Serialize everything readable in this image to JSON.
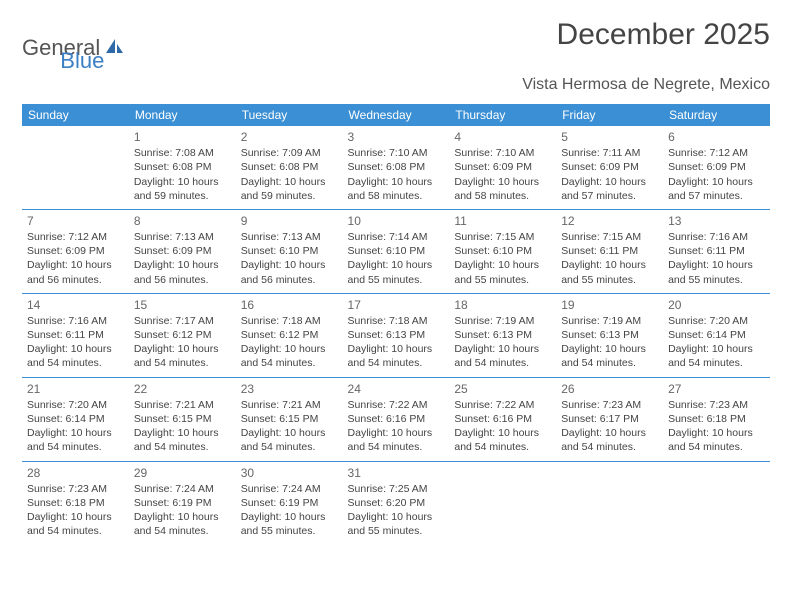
{
  "brand": {
    "part1": "General",
    "part2": "Blue"
  },
  "title": "December 2025",
  "subtitle": "Vista Hermosa de Negrete, Mexico",
  "colors": {
    "accent": "#3b8fd4",
    "text": "#444444",
    "bg": "#ffffff"
  },
  "weekdays": [
    "Sunday",
    "Monday",
    "Tuesday",
    "Wednesday",
    "Thursday",
    "Friday",
    "Saturday"
  ],
  "weeks": [
    [
      null,
      {
        "n": "1",
        "sr": "Sunrise: 7:08 AM",
        "ss": "Sunset: 6:08 PM",
        "d1": "Daylight: 10 hours",
        "d2": "and 59 minutes."
      },
      {
        "n": "2",
        "sr": "Sunrise: 7:09 AM",
        "ss": "Sunset: 6:08 PM",
        "d1": "Daylight: 10 hours",
        "d2": "and 59 minutes."
      },
      {
        "n": "3",
        "sr": "Sunrise: 7:10 AM",
        "ss": "Sunset: 6:08 PM",
        "d1": "Daylight: 10 hours",
        "d2": "and 58 minutes."
      },
      {
        "n": "4",
        "sr": "Sunrise: 7:10 AM",
        "ss": "Sunset: 6:09 PM",
        "d1": "Daylight: 10 hours",
        "d2": "and 58 minutes."
      },
      {
        "n": "5",
        "sr": "Sunrise: 7:11 AM",
        "ss": "Sunset: 6:09 PM",
        "d1": "Daylight: 10 hours",
        "d2": "and 57 minutes."
      },
      {
        "n": "6",
        "sr": "Sunrise: 7:12 AM",
        "ss": "Sunset: 6:09 PM",
        "d1": "Daylight: 10 hours",
        "d2": "and 57 minutes."
      }
    ],
    [
      {
        "n": "7",
        "sr": "Sunrise: 7:12 AM",
        "ss": "Sunset: 6:09 PM",
        "d1": "Daylight: 10 hours",
        "d2": "and 56 minutes."
      },
      {
        "n": "8",
        "sr": "Sunrise: 7:13 AM",
        "ss": "Sunset: 6:09 PM",
        "d1": "Daylight: 10 hours",
        "d2": "and 56 minutes."
      },
      {
        "n": "9",
        "sr": "Sunrise: 7:13 AM",
        "ss": "Sunset: 6:10 PM",
        "d1": "Daylight: 10 hours",
        "d2": "and 56 minutes."
      },
      {
        "n": "10",
        "sr": "Sunrise: 7:14 AM",
        "ss": "Sunset: 6:10 PM",
        "d1": "Daylight: 10 hours",
        "d2": "and 55 minutes."
      },
      {
        "n": "11",
        "sr": "Sunrise: 7:15 AM",
        "ss": "Sunset: 6:10 PM",
        "d1": "Daylight: 10 hours",
        "d2": "and 55 minutes."
      },
      {
        "n": "12",
        "sr": "Sunrise: 7:15 AM",
        "ss": "Sunset: 6:11 PM",
        "d1": "Daylight: 10 hours",
        "d2": "and 55 minutes."
      },
      {
        "n": "13",
        "sr": "Sunrise: 7:16 AM",
        "ss": "Sunset: 6:11 PM",
        "d1": "Daylight: 10 hours",
        "d2": "and 55 minutes."
      }
    ],
    [
      {
        "n": "14",
        "sr": "Sunrise: 7:16 AM",
        "ss": "Sunset: 6:11 PM",
        "d1": "Daylight: 10 hours",
        "d2": "and 54 minutes."
      },
      {
        "n": "15",
        "sr": "Sunrise: 7:17 AM",
        "ss": "Sunset: 6:12 PM",
        "d1": "Daylight: 10 hours",
        "d2": "and 54 minutes."
      },
      {
        "n": "16",
        "sr": "Sunrise: 7:18 AM",
        "ss": "Sunset: 6:12 PM",
        "d1": "Daylight: 10 hours",
        "d2": "and 54 minutes."
      },
      {
        "n": "17",
        "sr": "Sunrise: 7:18 AM",
        "ss": "Sunset: 6:13 PM",
        "d1": "Daylight: 10 hours",
        "d2": "and 54 minutes."
      },
      {
        "n": "18",
        "sr": "Sunrise: 7:19 AM",
        "ss": "Sunset: 6:13 PM",
        "d1": "Daylight: 10 hours",
        "d2": "and 54 minutes."
      },
      {
        "n": "19",
        "sr": "Sunrise: 7:19 AM",
        "ss": "Sunset: 6:13 PM",
        "d1": "Daylight: 10 hours",
        "d2": "and 54 minutes."
      },
      {
        "n": "20",
        "sr": "Sunrise: 7:20 AM",
        "ss": "Sunset: 6:14 PM",
        "d1": "Daylight: 10 hours",
        "d2": "and 54 minutes."
      }
    ],
    [
      {
        "n": "21",
        "sr": "Sunrise: 7:20 AM",
        "ss": "Sunset: 6:14 PM",
        "d1": "Daylight: 10 hours",
        "d2": "and 54 minutes."
      },
      {
        "n": "22",
        "sr": "Sunrise: 7:21 AM",
        "ss": "Sunset: 6:15 PM",
        "d1": "Daylight: 10 hours",
        "d2": "and 54 minutes."
      },
      {
        "n": "23",
        "sr": "Sunrise: 7:21 AM",
        "ss": "Sunset: 6:15 PM",
        "d1": "Daylight: 10 hours",
        "d2": "and 54 minutes."
      },
      {
        "n": "24",
        "sr": "Sunrise: 7:22 AM",
        "ss": "Sunset: 6:16 PM",
        "d1": "Daylight: 10 hours",
        "d2": "and 54 minutes."
      },
      {
        "n": "25",
        "sr": "Sunrise: 7:22 AM",
        "ss": "Sunset: 6:16 PM",
        "d1": "Daylight: 10 hours",
        "d2": "and 54 minutes."
      },
      {
        "n": "26",
        "sr": "Sunrise: 7:23 AM",
        "ss": "Sunset: 6:17 PM",
        "d1": "Daylight: 10 hours",
        "d2": "and 54 minutes."
      },
      {
        "n": "27",
        "sr": "Sunrise: 7:23 AM",
        "ss": "Sunset: 6:18 PM",
        "d1": "Daylight: 10 hours",
        "d2": "and 54 minutes."
      }
    ],
    [
      {
        "n": "28",
        "sr": "Sunrise: 7:23 AM",
        "ss": "Sunset: 6:18 PM",
        "d1": "Daylight: 10 hours",
        "d2": "and 54 minutes."
      },
      {
        "n": "29",
        "sr": "Sunrise: 7:24 AM",
        "ss": "Sunset: 6:19 PM",
        "d1": "Daylight: 10 hours",
        "d2": "and 54 minutes."
      },
      {
        "n": "30",
        "sr": "Sunrise: 7:24 AM",
        "ss": "Sunset: 6:19 PM",
        "d1": "Daylight: 10 hours",
        "d2": "and 55 minutes."
      },
      {
        "n": "31",
        "sr": "Sunrise: 7:25 AM",
        "ss": "Sunset: 6:20 PM",
        "d1": "Daylight: 10 hours",
        "d2": "and 55 minutes."
      },
      null,
      null,
      null
    ]
  ]
}
